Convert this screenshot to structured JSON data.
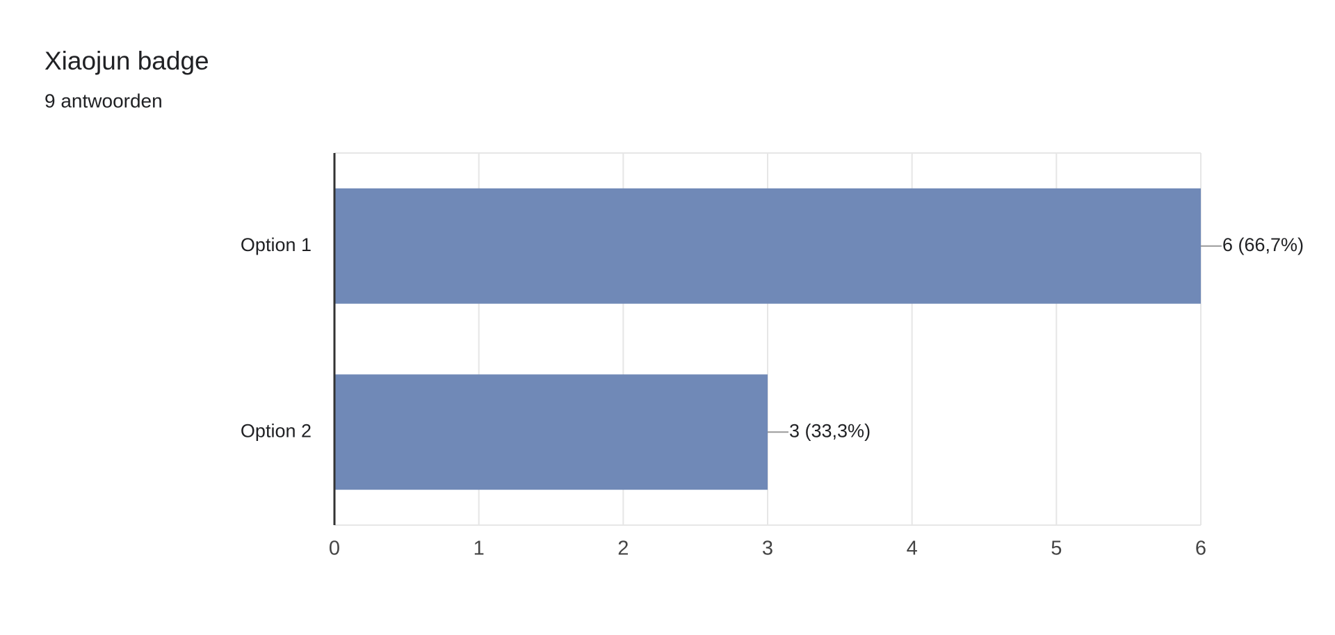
{
  "chart_data": {
    "type": "bar",
    "orientation": "horizontal",
    "title": "Xiaojun badge",
    "subtitle": "9 antwoorden",
    "categories": [
      "Option 1",
      "Option 2"
    ],
    "values": [
      6,
      3
    ],
    "value_labels": [
      "6 (66,7%)",
      "3 (33,3%)"
    ],
    "color": "#7089b7",
    "xlim": [
      0,
      6
    ],
    "xticks": [
      0,
      1,
      2,
      3,
      4,
      5,
      6
    ],
    "grid": true
  }
}
